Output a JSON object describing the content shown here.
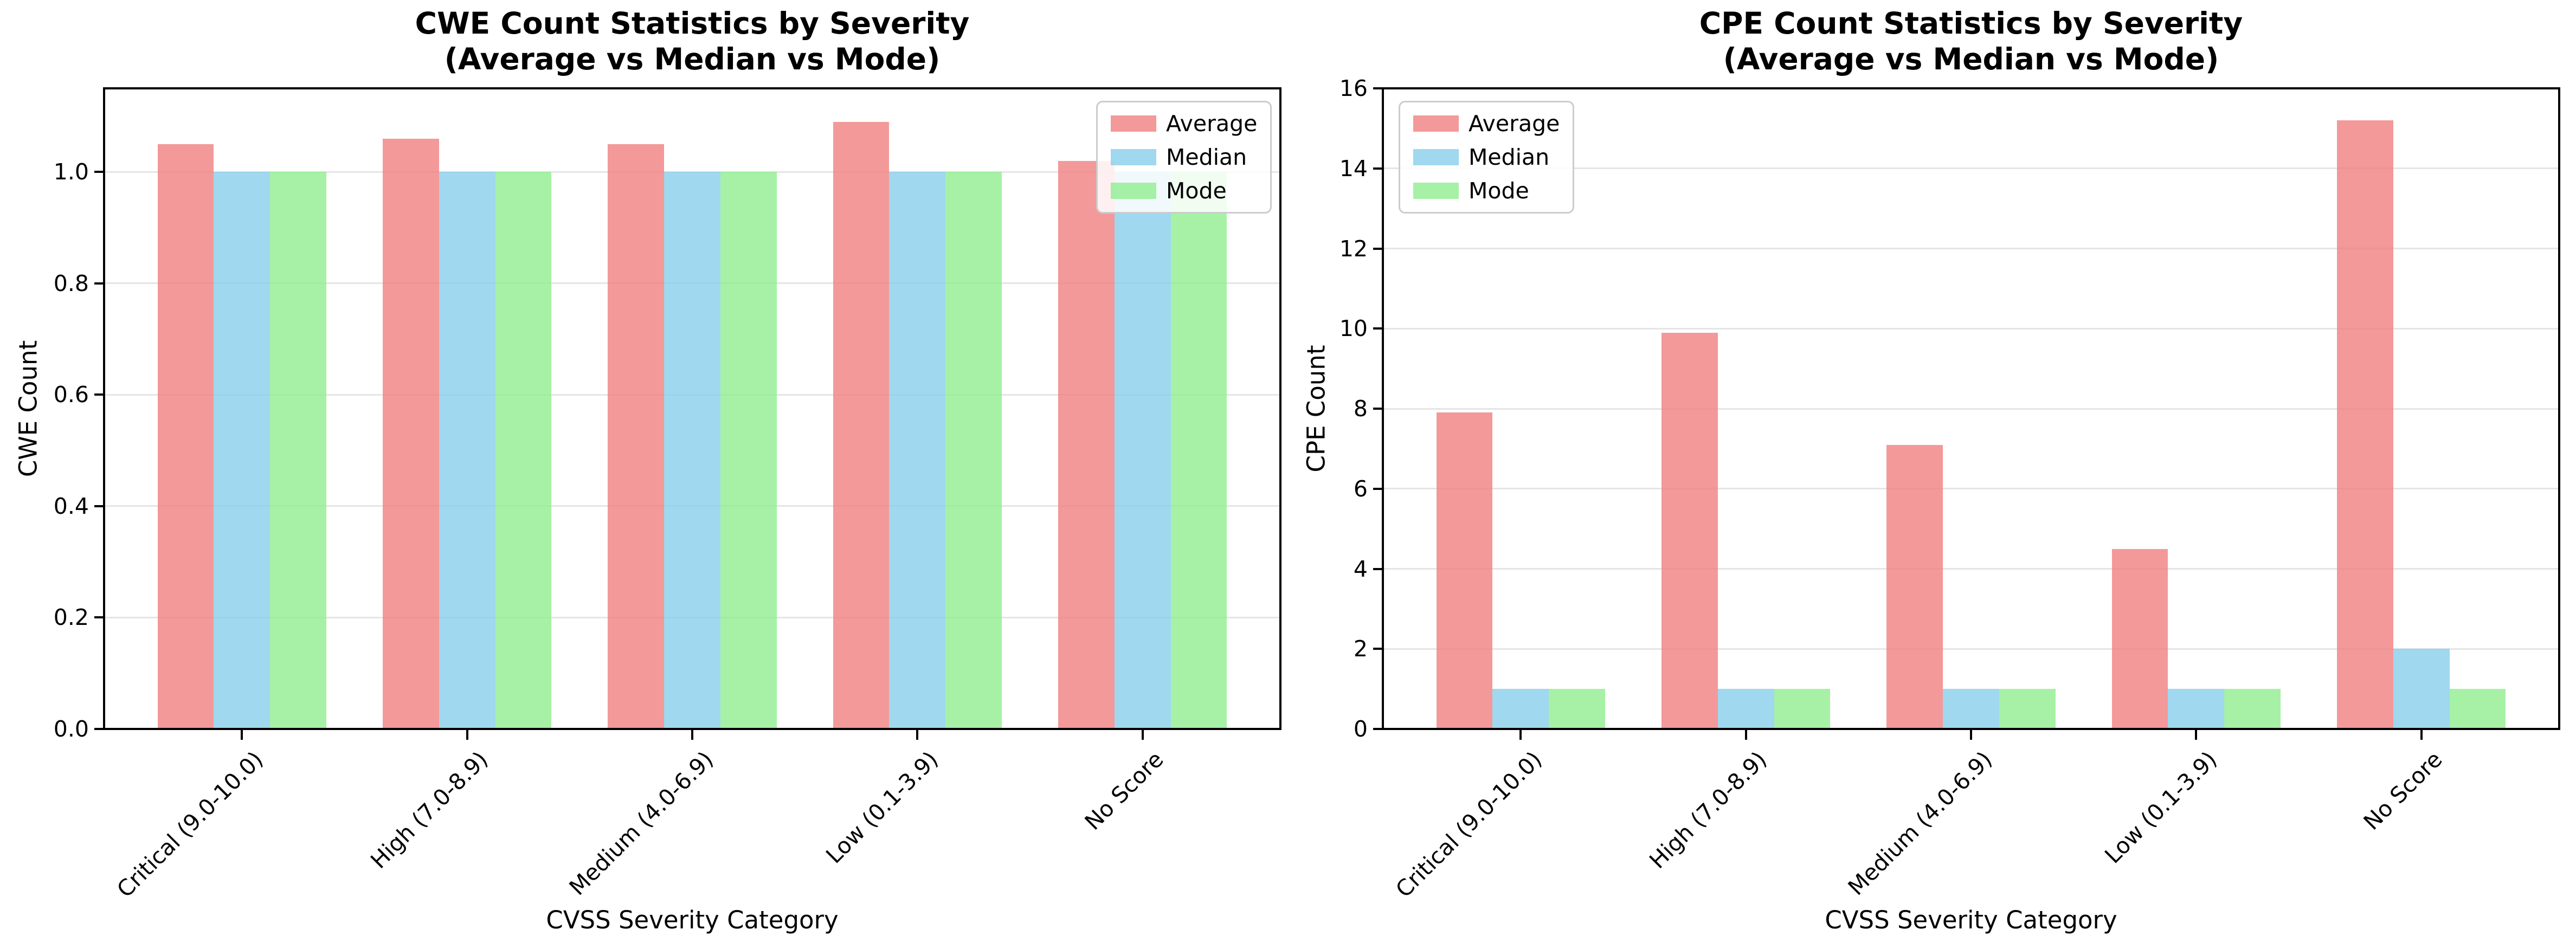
{
  "figure": {
    "background": "#FFFFFF",
    "text_color": "#000000",
    "grid_color": "#E5E5E5",
    "spine_color": "#000000",
    "bar_alpha": 0.8
  },
  "chart_data": [
    {
      "type": "bar",
      "title": "CWE Count Statistics by Severity",
      "subtitle": "(Average vs Median vs Mode)",
      "xlabel": "CVSS Severity Category",
      "ylabel": "CWE Count",
      "categories": [
        "Critical (9.0-10.0)",
        "High (7.0-8.9)",
        "Medium (4.0-6.9)",
        "Low (0.1-3.9)",
        "No Score"
      ],
      "series": [
        {
          "name": "Average",
          "color": "#F08080",
          "values": [
            1.05,
            1.06,
            1.05,
            1.09,
            1.02
          ]
        },
        {
          "name": "Median",
          "color": "#87CEEB",
          "values": [
            1.0,
            1.0,
            1.0,
            1.0,
            1.0
          ]
        },
        {
          "name": "Mode",
          "color": "#90EE90",
          "values": [
            1.0,
            1.0,
            1.0,
            1.0,
            1.0
          ]
        }
      ],
      "ylim": [
        0,
        1.15
      ],
      "yticks": [
        {
          "value": 0.0,
          "label": "0.0"
        },
        {
          "value": 0.2,
          "label": "0.2"
        },
        {
          "value": 0.4,
          "label": "0.4"
        },
        {
          "value": 0.6,
          "label": "0.6"
        },
        {
          "value": 0.8,
          "label": "0.8"
        },
        {
          "value": 1.0,
          "label": "1.0"
        }
      ],
      "grid": true,
      "legend_position": "upper right"
    },
    {
      "type": "bar",
      "title": "CPE Count Statistics by Severity",
      "subtitle": "(Average vs Median vs Mode)",
      "xlabel": "CVSS Severity Category",
      "ylabel": "CPE Count",
      "categories": [
        "Critical (9.0-10.0)",
        "High (7.0-8.9)",
        "Medium (4.0-6.9)",
        "Low (0.1-3.9)",
        "No Score"
      ],
      "series": [
        {
          "name": "Average",
          "color": "#F08080",
          "values": [
            7.9,
            9.9,
            7.1,
            4.5,
            15.2
          ]
        },
        {
          "name": "Median",
          "color": "#87CEEB",
          "values": [
            1,
            1,
            1,
            1,
            2
          ]
        },
        {
          "name": "Mode",
          "color": "#90EE90",
          "values": [
            1,
            1,
            1,
            1,
            1
          ]
        }
      ],
      "ylim": [
        0,
        16
      ],
      "yticks": [
        {
          "value": 0,
          "label": "0"
        },
        {
          "value": 2,
          "label": "2"
        },
        {
          "value": 4,
          "label": "4"
        },
        {
          "value": 6,
          "label": "6"
        },
        {
          "value": 8,
          "label": "8"
        },
        {
          "value": 10,
          "label": "10"
        },
        {
          "value": 12,
          "label": "12"
        },
        {
          "value": 14,
          "label": "14"
        },
        {
          "value": 16,
          "label": "16"
        }
      ],
      "grid": true,
      "legend_position": "upper left"
    }
  ]
}
